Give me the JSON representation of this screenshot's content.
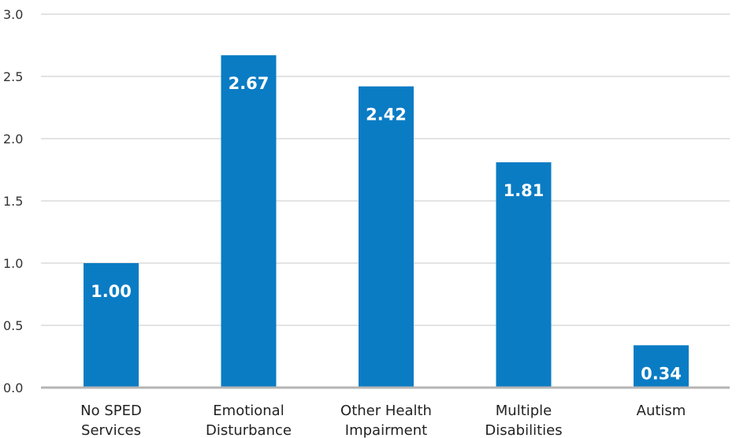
{
  "chart_data": {
    "type": "bar",
    "categories": [
      [
        "No SPED",
        "Services"
      ],
      [
        "Emotional",
        "Disturbance"
      ],
      [
        "Other Health",
        "Impairment"
      ],
      [
        "Multiple",
        "Disabilities"
      ],
      [
        "Autism"
      ]
    ],
    "values": [
      1.0,
      2.67,
      2.42,
      1.81,
      0.34
    ],
    "value_labels": [
      "1.00",
      "2.67",
      "2.42",
      "1.81",
      "0.34"
    ],
    "y_ticks": [
      "0.0",
      "0.5",
      "1.0",
      "1.5",
      "2.0",
      "2.5",
      "3.0"
    ],
    "ylim": [
      0,
      3.0
    ],
    "title": "",
    "xlabel": "",
    "ylabel": "",
    "grid": true,
    "legend": "none",
    "colors": {
      "bar": "#0a7cc4",
      "grid": "#c7c7c7",
      "axis": "#b5b5b5"
    }
  }
}
